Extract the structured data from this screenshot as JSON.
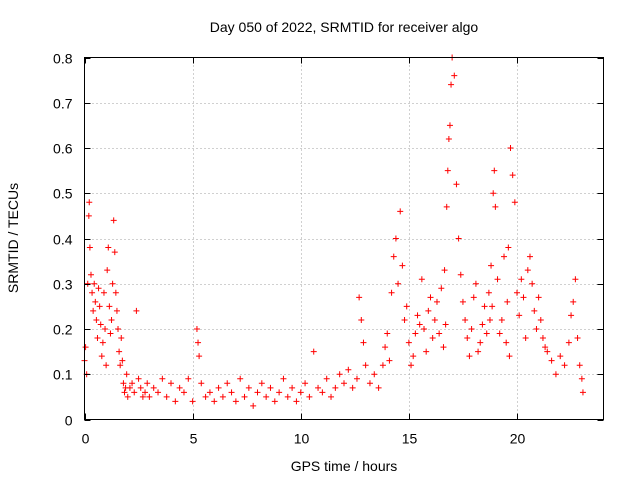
{
  "chart_data": {
    "type": "scatter",
    "title": "Day 050 of 2022, SRMTID for receiver algo",
    "xlabel": "GPS time / hours",
    "ylabel": "SRMTID / TECUs",
    "xlim": [
      0,
      24
    ],
    "ylim": [
      0,
      0.8
    ],
    "xticks": [
      0,
      5,
      10,
      15,
      20
    ],
    "yticks": [
      0,
      0.1,
      0.2,
      0.3,
      0.4,
      0.5,
      0.6,
      0.7,
      0.8
    ],
    "xtick_labels": [
      "0",
      "5",
      "10",
      "15",
      "20"
    ],
    "ytick_labels": [
      "0",
      "0.1",
      "0.2",
      "0.3",
      "0.4",
      "0.5",
      "0.6",
      "0.7",
      "0.8"
    ],
    "grid": true,
    "marker": "+",
    "color": "#ff0000",
    "series": [
      {
        "name": "SRMTID",
        "x": [
          0.0,
          0.05,
          0.1,
          0.15,
          0.2,
          0.22,
          0.25,
          0.3,
          0.35,
          0.4,
          0.45,
          0.5,
          0.55,
          0.6,
          0.65,
          0.7,
          0.75,
          0.8,
          0.85,
          0.9,
          0.95,
          1.0,
          1.05,
          1.1,
          1.15,
          1.2,
          1.25,
          1.3,
          1.35,
          1.4,
          1.45,
          1.5,
          1.55,
          1.6,
          1.65,
          1.7,
          1.75,
          1.8,
          1.85,
          1.9,
          1.95,
          2.0,
          2.1,
          2.2,
          2.3,
          2.4,
          2.5,
          2.6,
          2.7,
          2.8,
          2.9,
          3.0,
          3.2,
          3.4,
          3.6,
          3.8,
          4.0,
          4.2,
          4.4,
          4.6,
          4.8,
          5.0,
          5.2,
          5.25,
          5.3,
          5.4,
          5.6,
          5.8,
          6.0,
          6.2,
          6.4,
          6.6,
          6.8,
          7.0,
          7.2,
          7.4,
          7.6,
          7.8,
          8.0,
          8.2,
          8.4,
          8.6,
          8.8,
          9.0,
          9.2,
          9.4,
          9.6,
          9.8,
          10.0,
          10.2,
          10.4,
          10.6,
          10.8,
          11.0,
          11.2,
          11.4,
          11.6,
          11.8,
          12.0,
          12.2,
          12.4,
          12.6,
          12.7,
          12.8,
          12.9,
          13.0,
          13.2,
          13.4,
          13.6,
          13.8,
          13.9,
          14.0,
          14.1,
          14.2,
          14.3,
          14.4,
          14.5,
          14.6,
          14.7,
          14.8,
          14.9,
          15.0,
          15.1,
          15.2,
          15.3,
          15.4,
          15.5,
          15.6,
          15.7,
          15.8,
          15.9,
          16.0,
          16.1,
          16.2,
          16.3,
          16.4,
          16.5,
          16.6,
          16.65,
          16.7,
          16.75,
          16.8,
          16.85,
          16.9,
          16.95,
          17.0,
          17.1,
          17.2,
          17.3,
          17.4,
          17.5,
          17.6,
          17.7,
          17.8,
          17.9,
          18.0,
          18.1,
          18.2,
          18.3,
          18.4,
          18.5,
          18.6,
          18.7,
          18.75,
          18.8,
          18.85,
          18.9,
          18.95,
          19.0,
          19.1,
          19.2,
          19.3,
          19.4,
          19.5,
          19.55,
          19.6,
          19.65,
          19.7,
          19.8,
          19.9,
          20.0,
          20.1,
          20.2,
          20.3,
          20.4,
          20.5,
          20.6,
          20.7,
          20.8,
          20.9,
          21.0,
          21.1,
          21.2,
          21.3,
          21.4,
          21.6,
          21.8,
          22.0,
          22.2,
          22.4,
          22.5,
          22.6,
          22.7,
          22.8,
          22.9,
          23.0,
          23.05
        ],
        "y": [
          0.13,
          0.16,
          0.1,
          0.3,
          0.45,
          0.48,
          0.38,
          0.32,
          0.28,
          0.24,
          0.3,
          0.26,
          0.22,
          0.18,
          0.29,
          0.25,
          0.21,
          0.14,
          0.17,
          0.28,
          0.2,
          0.12,
          0.33,
          0.38,
          0.25,
          0.19,
          0.22,
          0.3,
          0.44,
          0.37,
          0.28,
          0.24,
          0.2,
          0.15,
          0.12,
          0.18,
          0.13,
          0.08,
          0.06,
          0.07,
          0.1,
          0.05,
          0.07,
          0.08,
          0.06,
          0.24,
          0.09,
          0.07,
          0.05,
          0.06,
          0.08,
          0.05,
          0.07,
          0.06,
          0.09,
          0.05,
          0.08,
          0.04,
          0.07,
          0.06,
          0.09,
          0.04,
          0.2,
          0.17,
          0.14,
          0.08,
          0.05,
          0.06,
          0.04,
          0.07,
          0.05,
          0.08,
          0.06,
          0.04,
          0.09,
          0.05,
          0.07,
          0.03,
          0.06,
          0.08,
          0.05,
          0.07,
          0.04,
          0.06,
          0.09,
          0.05,
          0.07,
          0.04,
          0.06,
          0.08,
          0.05,
          0.15,
          0.07,
          0.06,
          0.09,
          0.05,
          0.07,
          0.1,
          0.08,
          0.11,
          0.07,
          0.09,
          0.27,
          0.22,
          0.17,
          0.12,
          0.08,
          0.1,
          0.07,
          0.12,
          0.16,
          0.19,
          0.13,
          0.28,
          0.36,
          0.4,
          0.3,
          0.46,
          0.34,
          0.22,
          0.25,
          0.17,
          0.12,
          0.14,
          0.19,
          0.23,
          0.21,
          0.31,
          0.2,
          0.15,
          0.24,
          0.27,
          0.18,
          0.22,
          0.26,
          0.19,
          0.29,
          0.16,
          0.33,
          0.21,
          0.47,
          0.55,
          0.62,
          0.65,
          0.74,
          0.8,
          0.76,
          0.52,
          0.4,
          0.32,
          0.26,
          0.22,
          0.18,
          0.14,
          0.2,
          0.27,
          0.3,
          0.15,
          0.17,
          0.21,
          0.25,
          0.19,
          0.28,
          0.22,
          0.34,
          0.25,
          0.5,
          0.55,
          0.47,
          0.31,
          0.19,
          0.22,
          0.36,
          0.17,
          0.26,
          0.38,
          0.14,
          0.6,
          0.54,
          0.48,
          0.28,
          0.23,
          0.31,
          0.27,
          0.18,
          0.33,
          0.36,
          0.3,
          0.24,
          0.2,
          0.27,
          0.22,
          0.18,
          0.16,
          0.15,
          0.13,
          0.1,
          0.14,
          0.12,
          0.17,
          0.23,
          0.26,
          0.31,
          0.18,
          0.12,
          0.09,
          0.06
        ]
      }
    ]
  }
}
